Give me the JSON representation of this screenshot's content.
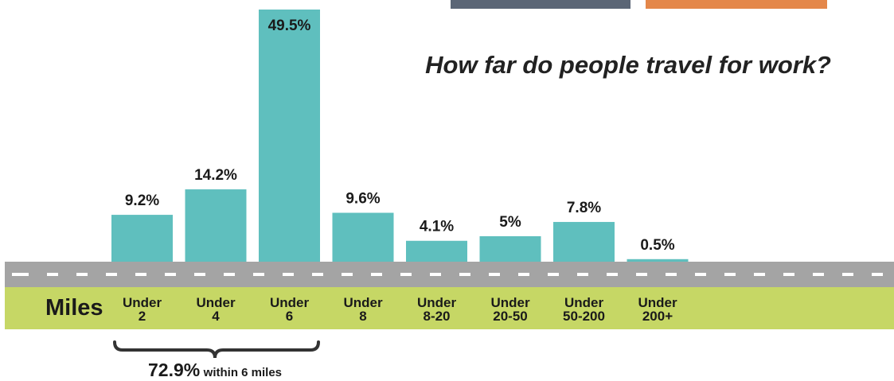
{
  "title": "How far do people travel for work?",
  "axis_label": "Miles",
  "colors": {
    "bar": "#5fbfbe",
    "road": "#a4a4a4",
    "grass": "#c6d765",
    "box_left": "#5b6676",
    "box_right": "#e4874a"
  },
  "summary": {
    "percent": "72.9%",
    "text": "within 6 miles"
  },
  "chart_data": {
    "type": "bar",
    "title": "How far do people travel for work?",
    "xlabel": "Miles",
    "ylabel": "",
    "categories": [
      [
        "Under",
        "2"
      ],
      [
        "Under",
        "4"
      ],
      [
        "Under",
        "6"
      ],
      [
        "Under",
        "8"
      ],
      [
        "Under",
        "8-20"
      ],
      [
        "Under",
        "20-50"
      ],
      [
        "Under",
        "50-200"
      ],
      [
        "Under",
        "200+"
      ]
    ],
    "values": [
      9.2,
      14.2,
      49.5,
      9.6,
      4.1,
      5,
      7.8,
      0.5
    ],
    "labels": [
      "9.2%",
      "14.2%",
      "49.5%",
      "9.6%",
      "4.1%",
      "5%",
      "7.8%",
      "0.5%"
    ],
    "unit": "%",
    "ylim": [
      0,
      49.5
    ],
    "grid": false,
    "legend": "none"
  }
}
